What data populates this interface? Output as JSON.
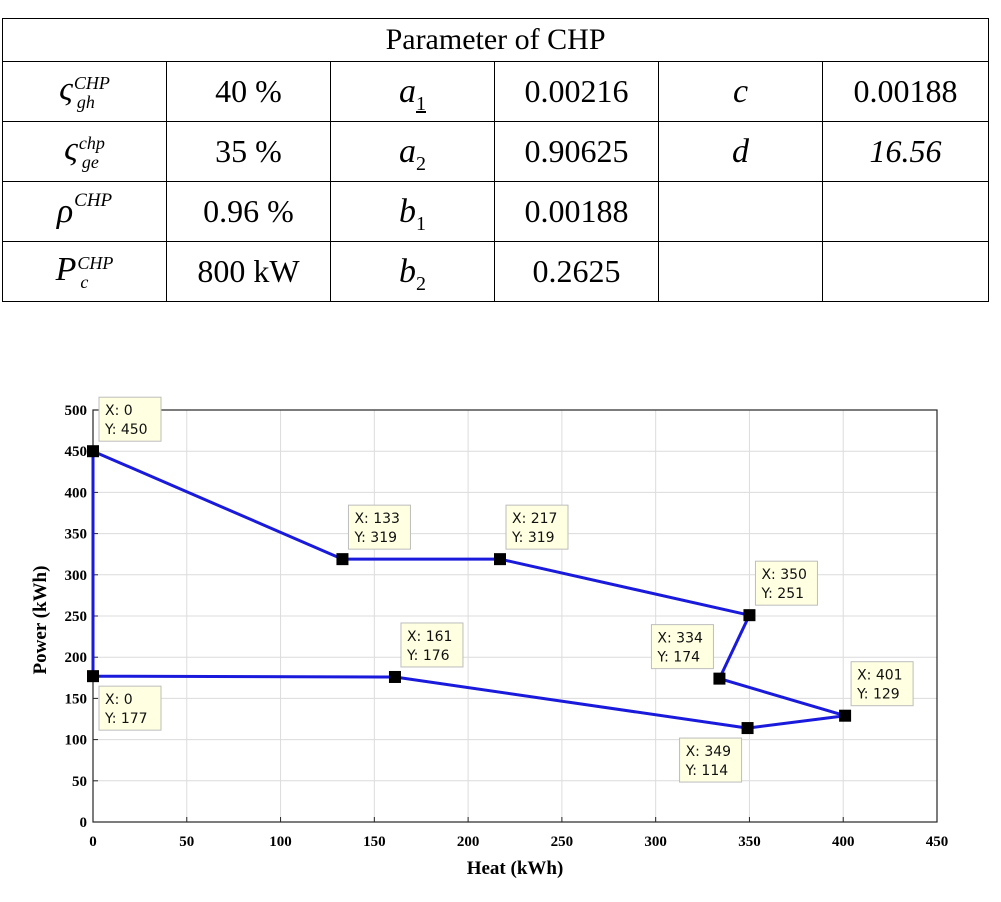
{
  "table": {
    "title": "Parameter of CHP",
    "rows": [
      {
        "sym1": "ς",
        "sup1": "CHP",
        "sub1": "gh",
        "val1": "40 %",
        "sym2": "a",
        "sub2": "1",
        "val2": "0.00216",
        "sym3": "c",
        "val3": "0.00188"
      },
      {
        "sym1": "ς",
        "sup1": "chp",
        "sub1": "ge",
        "val1": "35 %",
        "sym2": "a",
        "sub2": "2",
        "val2": "0.90625",
        "sym3": "d",
        "val3": "16.56"
      },
      {
        "sym1": "ρ",
        "sup1": "CHP",
        "val1": "0.96 %",
        "sym2": "b",
        "sub2": "1",
        "val2": "0.00188"
      },
      {
        "sym1": "P",
        "sup1": "CHP",
        "sub1": "c",
        "val1": "800 kW",
        "sym2": "b",
        "sub2": "2",
        "val2": "0.2625"
      }
    ]
  },
  "chart_data": {
    "type": "line",
    "xlabel": "Heat (kWh)",
    "ylabel": "Power (kWh)",
    "xlim": [
      0,
      450
    ],
    "ylim": [
      0,
      500
    ],
    "xticks": [
      0,
      50,
      100,
      150,
      200,
      250,
      300,
      350,
      400,
      450
    ],
    "yticks": [
      0,
      50,
      100,
      150,
      200,
      250,
      300,
      350,
      400,
      450,
      500
    ],
    "grid": true,
    "line_color": "#1a1adc",
    "polygon": [
      {
        "x": 0,
        "y": 450
      },
      {
        "x": 133,
        "y": 319
      },
      {
        "x": 217,
        "y": 319
      },
      {
        "x": 350,
        "y": 251
      },
      {
        "x": 334,
        "y": 174
      },
      {
        "x": 401,
        "y": 129
      },
      {
        "x": 349,
        "y": 114
      },
      {
        "x": 161,
        "y": 176
      },
      {
        "x": 0,
        "y": 177
      }
    ],
    "datatips": [
      {
        "x": 0,
        "y": 450,
        "text_x": "X: 0",
        "text_y": "Y: 450",
        "place": "above-right"
      },
      {
        "x": 133,
        "y": 319,
        "text_x": "X: 133",
        "text_y": "Y: 319",
        "place": "above-right"
      },
      {
        "x": 217,
        "y": 319,
        "text_x": "X: 217",
        "text_y": "Y: 319",
        "place": "above-right"
      },
      {
        "x": 350,
        "y": 251,
        "text_x": "X: 350",
        "text_y": "Y: 251",
        "place": "above-right"
      },
      {
        "x": 334,
        "y": 174,
        "text_x": "X: 334",
        "text_y": "Y: 174",
        "place": "above-left"
      },
      {
        "x": 401,
        "y": 129,
        "text_x": "X: 401",
        "text_y": "Y: 129",
        "place": "above-right"
      },
      {
        "x": 349,
        "y": 114,
        "text_x": "X: 349",
        "text_y": "Y: 114",
        "place": "below-left"
      },
      {
        "x": 161,
        "y": 176,
        "text_x": "X: 161",
        "text_y": "Y: 176",
        "place": "above-right"
      },
      {
        "x": 0,
        "y": 177,
        "text_x": "X: 0",
        "text_y": "Y: 177",
        "place": "below-right"
      }
    ]
  }
}
